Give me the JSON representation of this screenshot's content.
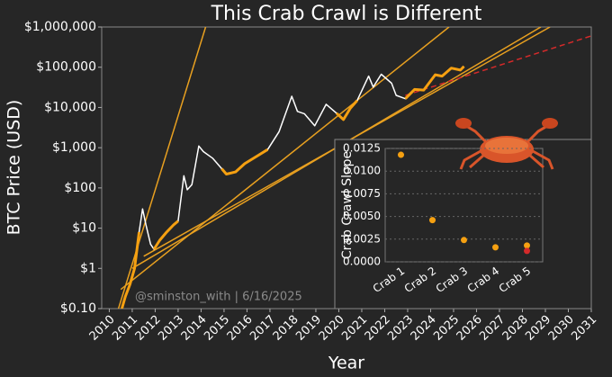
{
  "chart_data": [
    {
      "type": "line",
      "title": "This Crab Crawl is Different",
      "xlabel": "Year",
      "ylabel": "BTC Price (USD)",
      "annotation": "@sminston_with  |  6/16/2025",
      "log_y": true,
      "grid": false,
      "xlim": [
        2009.67,
        2031
      ],
      "xticks": [
        2010,
        2011,
        2012,
        2013,
        2014,
        2015,
        2016,
        2017,
        2018,
        2019,
        2020,
        2021,
        2022,
        2023,
        2024,
        2025,
        2026,
        2027,
        2028,
        2029,
        2030,
        2031
      ],
      "ylim": [
        0.1,
        1000000
      ],
      "yticks": [
        {
          "value": 0.1,
          "label": "$0.10"
        },
        {
          "value": 1,
          "label": "$1"
        },
        {
          "value": 10,
          "label": "$10"
        },
        {
          "value": 100,
          "label": "$100"
        },
        {
          "value": 1000,
          "label": "$1,000"
        },
        {
          "value": 10000,
          "label": "$10,000"
        },
        {
          "value": 100000,
          "label": "$100,000"
        },
        {
          "value": 1000000,
          "label": "$1,000,000"
        }
      ],
      "series": [
        {
          "color": "#e8a020",
          "style": "solid",
          "x": [
            2010.4,
            2014.2
          ],
          "values": [
            0.1,
            1000000
          ]
        },
        {
          "color": "#e8a020",
          "style": "solid",
          "x": [
            2010.5,
            2024.8
          ],
          "values": [
            0.3,
            1000000
          ]
        },
        {
          "color": "#e8a020",
          "style": "solid",
          "x": [
            2011.0,
            2028.8
          ],
          "values": [
            1,
            1000000
          ]
        },
        {
          "color": "#e8a020",
          "style": "solid",
          "x": [
            2011.5,
            2029.2
          ],
          "values": [
            2,
            1000000
          ]
        },
        {
          "color": "#d42a2a",
          "style": "dashed",
          "x": [
            2022.9,
            2031
          ],
          "values": [
            20000,
            600000
          ]
        },
        {
          "color": "#ffffff",
          "style": "solid",
          "x": [
            2010.55,
            2010.7,
            2010.9,
            2011.1,
            2011.3,
            2011.45,
            2011.6,
            2011.8,
            2011.95,
            2012.2,
            2012.5,
            2012.8,
            2013.0,
            2013.25,
            2013.4,
            2013.6,
            2013.9,
            2014.1,
            2014.5,
            2014.9,
            2015.1,
            2015.5,
            2015.9,
            2016.5,
            2016.9,
            2017.4,
            2017.95,
            2018.2,
            2018.5,
            2018.95,
            2019.45,
            2019.9,
            2020.2,
            2020.5,
            2020.8,
            2021.3,
            2021.5,
            2021.85,
            2022.3,
            2022.5,
            2022.9,
            2023.3,
            2023.7,
            2024.2,
            2024.5,
            2024.9,
            2025.3,
            2025.45
          ],
          "values": [
            0.1,
            0.2,
            0.4,
            1,
            8,
            30,
            12,
            4,
            3,
            5,
            8,
            12,
            15,
            200,
            90,
            120,
            1100,
            800,
            550,
            300,
            220,
            250,
            400,
            650,
            900,
            2500,
            19000,
            8000,
            7000,
            3500,
            12000,
            7200,
            5000,
            9500,
            15000,
            60000,
            32000,
            67000,
            40000,
            20000,
            16500,
            28000,
            27000,
            65000,
            60000,
            95000,
            85000,
            105000
          ]
        },
        {
          "color": "#f5a011",
          "style": "thick",
          "x": [
            2010.55,
            2010.7,
            2010.9,
            2011.1,
            2011.3,
            2011.45,
            2011.6,
            2011.8,
            2011.95,
            2012.2,
            2012.5,
            2012.8,
            2013.0,
            2013.25,
            2013.4,
            2013.6,
            2013.9,
            2014.1,
            2014.5,
            2014.9,
            2015.1,
            2015.5,
            2015.9,
            2016.5,
            2016.9,
            2017.4,
            2017.95,
            2018.2,
            2018.5,
            2018.95,
            2019.45,
            2019.9,
            2020.2,
            2020.5,
            2020.8,
            2021.3,
            2021.5,
            2021.85,
            2022.3,
            2022.5,
            2022.9,
            2023.3,
            2023.7,
            2024.2,
            2024.5,
            2024.9,
            2025.3,
            2025.45
          ],
          "values": [
            0.1,
            0.2,
            0.4,
            1,
            8,
            null,
            null,
            null,
            3,
            5,
            8,
            12,
            15,
            null,
            null,
            null,
            null,
            null,
            null,
            300,
            220,
            250,
            400,
            650,
            900,
            null,
            null,
            null,
            null,
            null,
            null,
            7200,
            5000,
            9500,
            15000,
            null,
            null,
            null,
            null,
            null,
            16500,
            28000,
            27000,
            65000,
            60000,
            95000,
            85000,
            105000
          ]
        }
      ]
    },
    {
      "type": "scatter",
      "ylabel": "Crab Crawl Slope",
      "grid": true,
      "categories": [
        "Crab 1",
        "Crab 2",
        "Crab 3",
        "Crab 4",
        "Crab 5"
      ],
      "ylim": [
        0,
        0.0125
      ],
      "yticks": [
        {
          "value": 0,
          "label": "0.0000"
        },
        {
          "value": 0.0025,
          "label": "0.0025"
        },
        {
          "value": 0.005,
          "label": "0.0050"
        },
        {
          "value": 0.0075,
          "label": "0.0075"
        },
        {
          "value": 0.01,
          "label": "0.0100"
        },
        {
          "value": 0.0125,
          "label": "0.0125"
        }
      ],
      "series": [
        {
          "color": "#f5a011",
          "values": [
            0.0118,
            0.0046,
            0.0024,
            0.0016,
            0.0018
          ]
        },
        {
          "color": "#d42a2a",
          "values": [
            null,
            null,
            null,
            null,
            0.0012
          ]
        }
      ]
    }
  ]
}
